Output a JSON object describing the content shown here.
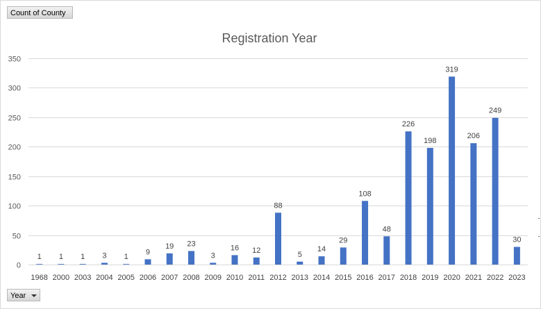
{
  "field_button_label": "Count of County",
  "axis_field_button": {
    "label": "Year",
    "icon": "dropdown-arrow-icon"
  },
  "chart_data": {
    "type": "bar",
    "title": "Registration Year",
    "xlabel": "",
    "ylabel": "",
    "categories": [
      "1968",
      "2000",
      "2003",
      "2004",
      "2005",
      "2006",
      "2007",
      "2008",
      "2009",
      "2010",
      "2011",
      "2012",
      "2013",
      "2014",
      "2015",
      "2016",
      "2017",
      "2018",
      "2019",
      "2020",
      "2021",
      "2022",
      "2023"
    ],
    "values": [
      1,
      1,
      1,
      3,
      1,
      9,
      19,
      23,
      3,
      16,
      12,
      88,
      5,
      14,
      29,
      108,
      48,
      226,
      198,
      319,
      206,
      249,
      30
    ],
    "ylim": [
      0,
      350
    ],
    "yticks": [
      0,
      50,
      100,
      150,
      200,
      250,
      300,
      350
    ],
    "grid": true,
    "data_labels": true,
    "bar_color": "#4472c4"
  }
}
